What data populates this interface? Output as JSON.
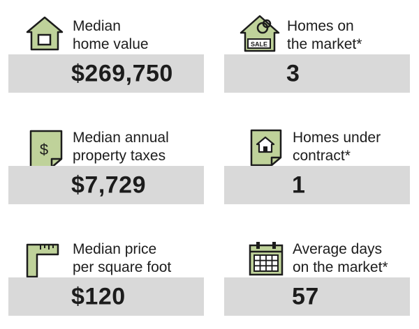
{
  "accent_color": "#bfd29a",
  "stats": [
    {
      "icon": "house-icon",
      "label_line1": "Median",
      "label_line2": "home value",
      "value": "$269,750"
    },
    {
      "icon": "sale-tag-house-icon",
      "icon_text": "SALE",
      "label_line1": "Homes on",
      "label_line2": "the market*",
      "value": "3"
    },
    {
      "icon": "tax-document-icon",
      "icon_text": "$",
      "label_line1": "Median annual",
      "label_line2": "property taxes",
      "value": "$7,729"
    },
    {
      "icon": "contract-document-icon",
      "label_line1": "Homes under",
      "label_line2": "contract*",
      "value": "1"
    },
    {
      "icon": "ruler-square-icon",
      "label_line1": "Median price",
      "label_line2": "per square foot",
      "value": "$120"
    },
    {
      "icon": "calendar-icon",
      "label_line1": "Average days",
      "label_line2": "on the market*",
      "value": "57"
    }
  ]
}
